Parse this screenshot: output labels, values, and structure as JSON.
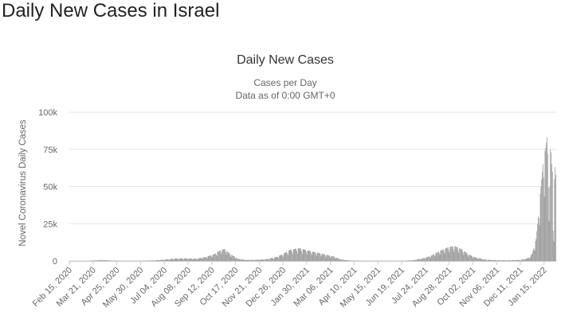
{
  "page": {
    "heading": "Daily New Cases in Israel"
  },
  "chart_data": {
    "type": "bar",
    "title": "Daily New Cases",
    "subtitle_lines": [
      "Cases per Day",
      "Data as of 0:00 GMT+0"
    ],
    "xlabel": "",
    "ylabel": "Novel Coronavirus Daily Cases",
    "ylim": [
      0,
      100000
    ],
    "yticks": [
      0,
      25000,
      50000,
      75000,
      100000
    ],
    "ytick_labels": [
      "0",
      "25k",
      "50k",
      "75k",
      "100k"
    ],
    "x_start": "Feb 15, 2020",
    "x_end": "Feb 01, 2022",
    "xtick_labels": [
      "Feb 15, 2020",
      "Mar 21, 2020",
      "Apr 25, 2020",
      "May 30, 2020",
      "Jul 04, 2020",
      "Aug 08, 2020",
      "Sep 12, 2020",
      "Oct 17, 2020",
      "Nov 21, 2020",
      "Dec 26, 2020",
      "Jan 30, 2021",
      "Mar 06, 2021",
      "Apr 10, 2021",
      "May 15, 2021",
      "Jun 19, 2021",
      "Jul 24, 2021",
      "Aug 28, 2021",
      "Oct 02, 2021",
      "Nov 06, 2021",
      "Dec 11, 2021",
      "Jan 15, 2022"
    ],
    "grid": true,
    "legend": false,
    "bar_color": "#999999",
    "curve_points": [
      {
        "date": "Feb 15, 2020",
        "value": 0
      },
      {
        "date": "Mar 10, 2020",
        "value": 0
      },
      {
        "date": "Mar 25, 2020",
        "value": 400
      },
      {
        "date": "Apr 02, 2020",
        "value": 650
      },
      {
        "date": "Apr 20, 2020",
        "value": 200
      },
      {
        "date": "May 10, 2020",
        "value": 30
      },
      {
        "date": "Jun 01, 2020",
        "value": 80
      },
      {
        "date": "Jun 15, 2020",
        "value": 300
      },
      {
        "date": "Jul 01, 2020",
        "value": 800
      },
      {
        "date": "Jul 20, 2020",
        "value": 1700
      },
      {
        "date": "Aug 01, 2020",
        "value": 1800
      },
      {
        "date": "Aug 20, 2020",
        "value": 1600
      },
      {
        "date": "Sep 01, 2020",
        "value": 2500
      },
      {
        "date": "Sep 15, 2020",
        "value": 4500
      },
      {
        "date": "Sep 25, 2020",
        "value": 7500
      },
      {
        "date": "Oct 01, 2020",
        "value": 8000
      },
      {
        "date": "Oct 08, 2020",
        "value": 5000
      },
      {
        "date": "Oct 20, 2020",
        "value": 1500
      },
      {
        "date": "Nov 01, 2020",
        "value": 700
      },
      {
        "date": "Nov 15, 2020",
        "value": 800
      },
      {
        "date": "Dec 01, 2020",
        "value": 1200
      },
      {
        "date": "Dec 15, 2020",
        "value": 2600
      },
      {
        "date": "Dec 25, 2020",
        "value": 4500
      },
      {
        "date": "Jan 05, 2021",
        "value": 7500
      },
      {
        "date": "Jan 18, 2021",
        "value": 8600
      },
      {
        "date": "Jan 28, 2021",
        "value": 7500
      },
      {
        "date": "Feb 10, 2021",
        "value": 6000
      },
      {
        "date": "Feb 25, 2021",
        "value": 4500
      },
      {
        "date": "Mar 10, 2021",
        "value": 3000
      },
      {
        "date": "Mar 22, 2021",
        "value": 1000
      },
      {
        "date": "Apr 05, 2021",
        "value": 300
      },
      {
        "date": "Apr 20, 2021",
        "value": 100
      },
      {
        "date": "May 15, 2021",
        "value": 40
      },
      {
        "date": "Jun 15, 2021",
        "value": 20
      },
      {
        "date": "Jun 25, 2021",
        "value": 150
      },
      {
        "date": "Jul 05, 2021",
        "value": 500
      },
      {
        "date": "Jul 20, 2021",
        "value": 1800
      },
      {
        "date": "Aug 01, 2021",
        "value": 3500
      },
      {
        "date": "Aug 15, 2021",
        "value": 7000
      },
      {
        "date": "Aug 28, 2021",
        "value": 9500
      },
      {
        "date": "Sep 05, 2021",
        "value": 10000
      },
      {
        "date": "Sep 15, 2021",
        "value": 8000
      },
      {
        "date": "Sep 25, 2021",
        "value": 4500
      },
      {
        "date": "Oct 05, 2021",
        "value": 2500
      },
      {
        "date": "Oct 20, 2021",
        "value": 900
      },
      {
        "date": "Nov 05, 2021",
        "value": 500
      },
      {
        "date": "Nov 25, 2021",
        "value": 500
      },
      {
        "date": "Dec 10, 2021",
        "value": 700
      },
      {
        "date": "Dec 18, 2021",
        "value": 1300
      },
      {
        "date": "Dec 24, 2021",
        "value": 2500
      },
      {
        "date": "Dec 28, 2021",
        "value": 5000
      },
      {
        "date": "Dec 31, 2021",
        "value": 10000
      },
      {
        "date": "Jan 03, 2022",
        "value": 15000
      },
      {
        "date": "Jan 05, 2022",
        "value": 25000
      },
      {
        "date": "Jan 07, 2022",
        "value": 35000
      },
      {
        "date": "Jan 09, 2022",
        "value": 45000
      },
      {
        "date": "Jan 11, 2022",
        "value": 55000
      },
      {
        "date": "Jan 13, 2022",
        "value": 65000
      },
      {
        "date": "Jan 15, 2022",
        "value": 72000
      },
      {
        "date": "Jan 17, 2022",
        "value": 76000
      },
      {
        "date": "Jan 19, 2022",
        "value": 83000
      },
      {
        "date": "Jan 20, 2022",
        "value": 72000
      },
      {
        "date": "Jan 21, 2022",
        "value": 60000
      },
      {
        "date": "Jan 22, 2022",
        "value": 45000
      },
      {
        "date": "Jan 23, 2022",
        "value": 50000
      },
      {
        "date": "Jan 24, 2022",
        "value": 75000
      },
      {
        "date": "Jan 25, 2022",
        "value": 73000
      },
      {
        "date": "Jan 26, 2022",
        "value": 65000
      },
      {
        "date": "Jan 27, 2022",
        "value": 60000
      },
      {
        "date": "Jan 28, 2022",
        "value": 25000
      },
      {
        "date": "Jan 29, 2022",
        "value": 22000
      },
      {
        "date": "Jan 30, 2022",
        "value": 55000
      },
      {
        "date": "Jan 31, 2022",
        "value": 63000
      },
      {
        "date": "Feb 01, 2022",
        "value": 58000
      }
    ]
  }
}
